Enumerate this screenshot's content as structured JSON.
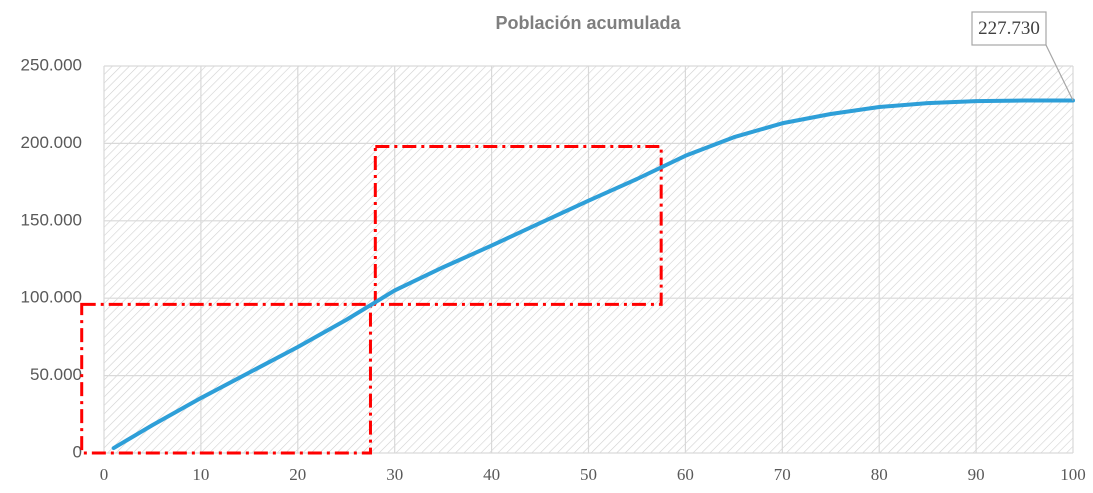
{
  "chart_data": {
    "type": "line",
    "title": "Población acumulada",
    "x": [
      1,
      5,
      10,
      15,
      20,
      25,
      30,
      35,
      40,
      45,
      50,
      55,
      60,
      65,
      70,
      75,
      80,
      85,
      90,
      95,
      100
    ],
    "series": [
      {
        "color": "#2e9fd8",
        "values": [
          3200,
          18000,
          35500,
          52000,
          68500,
          86000,
          105000,
          120000,
          134000,
          148500,
          163000,
          177000,
          192000,
          204000,
          213000,
          219000,
          223500,
          226000,
          227300,
          227700,
          227730
        ]
      }
    ],
    "xlim": [
      0,
      100
    ],
    "xticks": [
      0,
      10,
      20,
      30,
      40,
      50,
      60,
      70,
      80,
      90,
      100
    ],
    "ylim": [
      0,
      250000
    ],
    "yticks": [
      0,
      {
        "value": 50000,
        "label": "50.000"
      },
      {
        "value": 100000,
        "label": "100.000"
      },
      {
        "value": 150000,
        "label": "150.000"
      },
      {
        "value": 200000,
        "label": "200.000"
      },
      {
        "value": 250000,
        "label": "250.000"
      }
    ],
    "grid": true,
    "annotations": [
      {
        "text": "227.730",
        "x": 100,
        "y": 227730
      }
    ],
    "boxes": [
      {
        "color": "#ff0000",
        "x": [
          -2.3,
          27.5
        ],
        "y": [
          0,
          96000
        ]
      },
      {
        "color": "#ff0000",
        "x": [
          28,
          57.5
        ],
        "y": [
          96000,
          198000
        ]
      }
    ]
  }
}
